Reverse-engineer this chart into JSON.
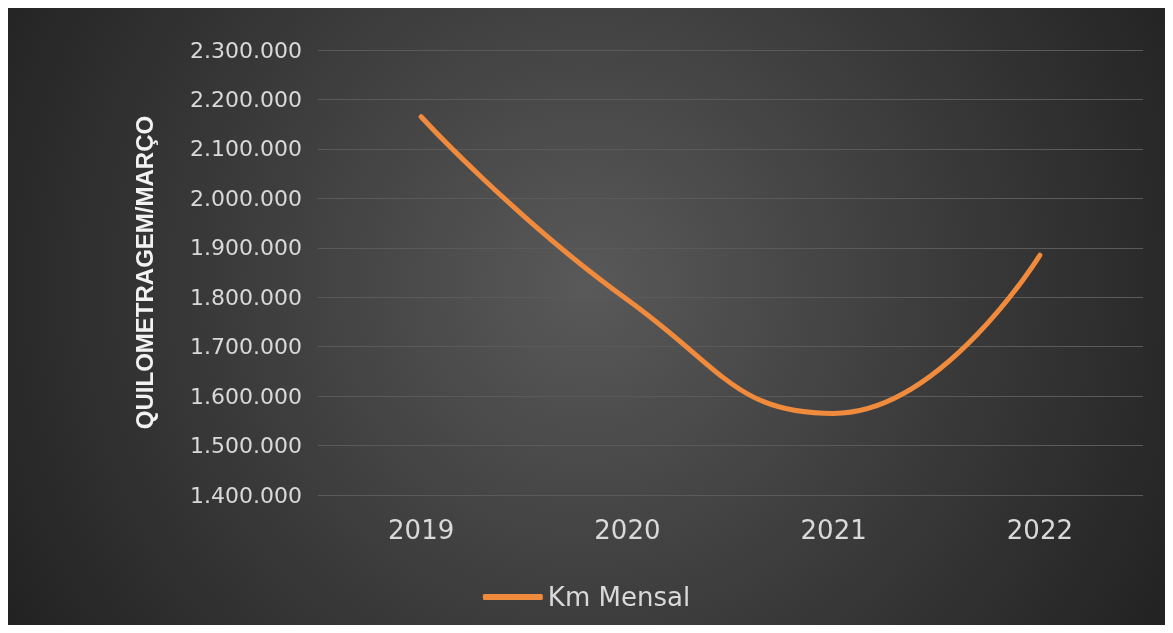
{
  "chart_data": {
    "type": "line",
    "ylabel": "QUILOMETRAGEM/MARÇO",
    "categories": [
      "2019",
      "2020",
      "2021",
      "2022"
    ],
    "series": [
      {
        "name": "Km Mensal",
        "color": "#f08a3c",
        "values": [
          2165000,
          1795000,
          1565000,
          1885000
        ]
      }
    ],
    "ylim": [
      1400000,
      2300000
    ],
    "yticks": [
      {
        "value": 1400000,
        "label": "1.400.000"
      },
      {
        "value": 1500000,
        "label": "1.500.000"
      },
      {
        "value": 1600000,
        "label": "1.600.000"
      },
      {
        "value": 1700000,
        "label": "1.700.000"
      },
      {
        "value": 1800000,
        "label": "1.800.000"
      },
      {
        "value": 1900000,
        "label": "1.900.000"
      },
      {
        "value": 2000000,
        "label": "2.000.000"
      },
      {
        "value": 2100000,
        "label": "2.100.000"
      },
      {
        "value": 2200000,
        "label": "2.200.000"
      },
      {
        "value": 2300000,
        "label": "2.300.000"
      }
    ],
    "grid": "y",
    "legend": "bottom",
    "marker": "none",
    "line_style": "solid"
  }
}
